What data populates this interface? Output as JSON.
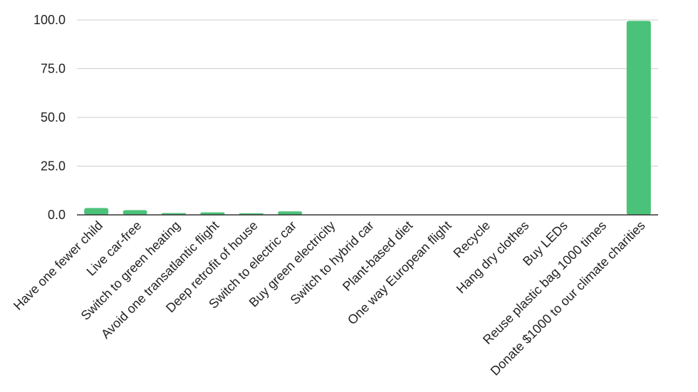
{
  "chart_data": {
    "type": "bar",
    "categories": [
      "Have one fewer child",
      "Live car-free",
      "Switch to green heating",
      "Avoid one transatlantic flight",
      "Deep retrofit of house",
      "Switch to electric car",
      "Buy green electricity",
      "Switch to hybrid car",
      "Plant-based diet",
      "One way European flight",
      "Recycle",
      "Hang dry clothes",
      "Buy LEDs",
      "Reuse plastic bag 1000 times",
      "Donate $1000 to our climate charities"
    ],
    "values": [
      3.5,
      2.4,
      0.9,
      1.3,
      0.8,
      1.8,
      0.2,
      0.2,
      0.2,
      0.2,
      0.1,
      0.1,
      0.1,
      0.1,
      99.5
    ],
    "ylim": [
      0,
      100
    ],
    "yticks": [
      "0.0",
      "25.0",
      "50.0",
      "75.0",
      "100.0"
    ],
    "ytick_values": [
      0,
      25,
      50,
      75,
      100
    ],
    "grid": true,
    "bar_color": "#4bc279",
    "title": "",
    "xlabel": "",
    "ylabel": ""
  }
}
